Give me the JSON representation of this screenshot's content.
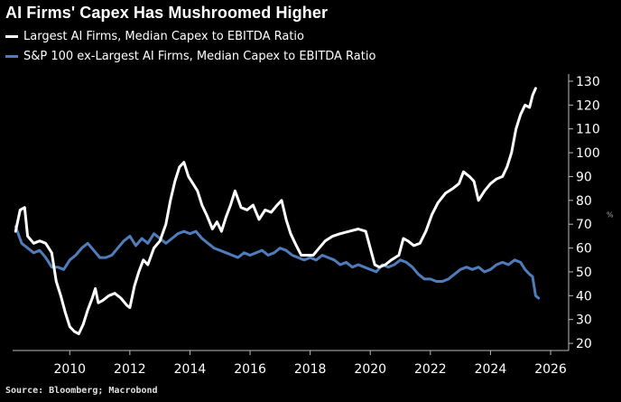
{
  "title": "AI Firms' Capex Has Mushroomed Higher",
  "source": "Source: Bloomberg; Macrobond",
  "chart_data": {
    "type": "line",
    "title": "AI Firms' Capex Has Mushroomed Higher",
    "xlabel": "",
    "ylabel": "",
    "unit": "%",
    "xlim": [
      2008.1,
      2026.6
    ],
    "ylim": [
      17,
      133
    ],
    "x_ticks": [
      2010,
      2012,
      2014,
      2016,
      2018,
      2020,
      2022,
      2024,
      2026
    ],
    "y_ticks": [
      20,
      30,
      40,
      50,
      60,
      70,
      80,
      90,
      100,
      110,
      120,
      130
    ],
    "grid": false,
    "legend_position": "top-left",
    "series": [
      {
        "name": "Largest AI Firms, Median Capex to EBITDA Ratio",
        "color": "#ffffff",
        "points": [
          [
            2008.2,
            67
          ],
          [
            2008.35,
            76
          ],
          [
            2008.5,
            77
          ],
          [
            2008.6,
            65
          ],
          [
            2008.8,
            62
          ],
          [
            2009.0,
            63
          ],
          [
            2009.2,
            62
          ],
          [
            2009.4,
            58
          ],
          [
            2009.55,
            46
          ],
          [
            2009.7,
            40
          ],
          [
            2009.85,
            33
          ],
          [
            2010.0,
            27
          ],
          [
            2010.15,
            25
          ],
          [
            2010.3,
            24
          ],
          [
            2010.45,
            28
          ],
          [
            2010.6,
            34
          ],
          [
            2010.75,
            39
          ],
          [
            2010.85,
            43
          ],
          [
            2010.95,
            37
          ],
          [
            2011.1,
            38
          ],
          [
            2011.3,
            40
          ],
          [
            2011.5,
            41
          ],
          [
            2011.7,
            39
          ],
          [
            2011.9,
            36
          ],
          [
            2012.0,
            35
          ],
          [
            2012.15,
            44
          ],
          [
            2012.3,
            50
          ],
          [
            2012.45,
            55
          ],
          [
            2012.6,
            53
          ],
          [
            2012.8,
            60
          ],
          [
            2013.0,
            63
          ],
          [
            2013.2,
            70
          ],
          [
            2013.35,
            80
          ],
          [
            2013.5,
            88
          ],
          [
            2013.65,
            94
          ],
          [
            2013.8,
            96
          ],
          [
            2013.95,
            90
          ],
          [
            2014.1,
            87
          ],
          [
            2014.25,
            84
          ],
          [
            2014.4,
            78
          ],
          [
            2014.55,
            74
          ],
          [
            2014.75,
            68
          ],
          [
            2014.9,
            71
          ],
          [
            2015.05,
            67
          ],
          [
            2015.2,
            73
          ],
          [
            2015.35,
            78
          ],
          [
            2015.5,
            84
          ],
          [
            2015.7,
            77
          ],
          [
            2015.9,
            76
          ],
          [
            2016.1,
            78
          ],
          [
            2016.3,
            72
          ],
          [
            2016.5,
            76
          ],
          [
            2016.7,
            75
          ],
          [
            2016.9,
            78
          ],
          [
            2017.05,
            80
          ],
          [
            2017.2,
            72
          ],
          [
            2017.35,
            66
          ],
          [
            2017.5,
            62
          ],
          [
            2017.7,
            57
          ],
          [
            2017.9,
            57
          ],
          [
            2018.1,
            57
          ],
          [
            2018.3,
            60
          ],
          [
            2018.5,
            63
          ],
          [
            2018.75,
            65
          ],
          [
            2019.0,
            66
          ],
          [
            2019.3,
            67
          ],
          [
            2019.6,
            68
          ],
          [
            2019.85,
            67
          ],
          [
            2020.0,
            60
          ],
          [
            2020.15,
            53
          ],
          [
            2020.3,
            52
          ],
          [
            2020.5,
            53
          ],
          [
            2020.7,
            55
          ],
          [
            2020.95,
            57
          ],
          [
            2021.1,
            64
          ],
          [
            2021.25,
            63
          ],
          [
            2021.45,
            61
          ],
          [
            2021.65,
            62
          ],
          [
            2021.85,
            67
          ],
          [
            2022.05,
            74
          ],
          [
            2022.25,
            79
          ],
          [
            2022.5,
            83
          ],
          [
            2022.75,
            85
          ],
          [
            2022.95,
            87
          ],
          [
            2023.1,
            92
          ],
          [
            2023.3,
            90
          ],
          [
            2023.45,
            88
          ],
          [
            2023.6,
            80
          ],
          [
            2023.8,
            84
          ],
          [
            2024.0,
            87
          ],
          [
            2024.2,
            89
          ],
          [
            2024.4,
            90
          ],
          [
            2024.55,
            94
          ],
          [
            2024.7,
            100
          ],
          [
            2024.85,
            110
          ],
          [
            2025.0,
            116
          ],
          [
            2025.15,
            120
          ],
          [
            2025.3,
            119
          ],
          [
            2025.4,
            124
          ],
          [
            2025.5,
            127
          ]
        ]
      },
      {
        "name": "S&P 100 ex-Largest AI Firms, Median Capex to EBITDA Ratio",
        "color": "#4f7cba",
        "points": [
          [
            2008.2,
            69
          ],
          [
            2008.4,
            62
          ],
          [
            2008.6,
            60
          ],
          [
            2008.8,
            58
          ],
          [
            2009.0,
            59
          ],
          [
            2009.2,
            56
          ],
          [
            2009.4,
            52
          ],
          [
            2009.6,
            52
          ],
          [
            2009.8,
            51
          ],
          [
            2010.0,
            55
          ],
          [
            2010.2,
            57
          ],
          [
            2010.4,
            60
          ],
          [
            2010.6,
            62
          ],
          [
            2010.8,
            59
          ],
          [
            2011.0,
            56
          ],
          [
            2011.2,
            56
          ],
          [
            2011.4,
            57
          ],
          [
            2011.6,
            60
          ],
          [
            2011.8,
            63
          ],
          [
            2012.0,
            65
          ],
          [
            2012.2,
            61
          ],
          [
            2012.4,
            64
          ],
          [
            2012.6,
            62
          ],
          [
            2012.8,
            66
          ],
          [
            2013.0,
            64
          ],
          [
            2013.2,
            62
          ],
          [
            2013.4,
            64
          ],
          [
            2013.6,
            66
          ],
          [
            2013.8,
            67
          ],
          [
            2014.0,
            66
          ],
          [
            2014.2,
            67
          ],
          [
            2014.4,
            64
          ],
          [
            2014.6,
            62
          ],
          [
            2014.8,
            60
          ],
          [
            2015.0,
            59
          ],
          [
            2015.2,
            58
          ],
          [
            2015.4,
            57
          ],
          [
            2015.6,
            56
          ],
          [
            2015.8,
            58
          ],
          [
            2016.0,
            57
          ],
          [
            2016.2,
            58
          ],
          [
            2016.4,
            59
          ],
          [
            2016.6,
            57
          ],
          [
            2016.8,
            58
          ],
          [
            2017.0,
            60
          ],
          [
            2017.2,
            59
          ],
          [
            2017.4,
            57
          ],
          [
            2017.6,
            56
          ],
          [
            2017.8,
            55
          ],
          [
            2018.0,
            56
          ],
          [
            2018.2,
            55
          ],
          [
            2018.4,
            57
          ],
          [
            2018.6,
            56
          ],
          [
            2018.8,
            55
          ],
          [
            2019.0,
            53
          ],
          [
            2019.2,
            54
          ],
          [
            2019.4,
            52
          ],
          [
            2019.6,
            53
          ],
          [
            2019.8,
            52
          ],
          [
            2020.0,
            51
          ],
          [
            2020.2,
            50
          ],
          [
            2020.4,
            53
          ],
          [
            2020.6,
            52
          ],
          [
            2020.8,
            53
          ],
          [
            2021.0,
            55
          ],
          [
            2021.2,
            54
          ],
          [
            2021.4,
            52
          ],
          [
            2021.6,
            49
          ],
          [
            2021.8,
            47
          ],
          [
            2022.0,
            47
          ],
          [
            2022.2,
            46
          ],
          [
            2022.4,
            46
          ],
          [
            2022.6,
            47
          ],
          [
            2022.8,
            49
          ],
          [
            2023.0,
            51
          ],
          [
            2023.2,
            52
          ],
          [
            2023.4,
            51
          ],
          [
            2023.6,
            52
          ],
          [
            2023.8,
            50
          ],
          [
            2024.0,
            51
          ],
          [
            2024.2,
            53
          ],
          [
            2024.4,
            54
          ],
          [
            2024.6,
            53
          ],
          [
            2024.8,
            55
          ],
          [
            2025.0,
            54
          ],
          [
            2025.15,
            51
          ],
          [
            2025.3,
            49
          ],
          [
            2025.4,
            48
          ],
          [
            2025.5,
            40
          ],
          [
            2025.6,
            39
          ]
        ]
      }
    ]
  }
}
